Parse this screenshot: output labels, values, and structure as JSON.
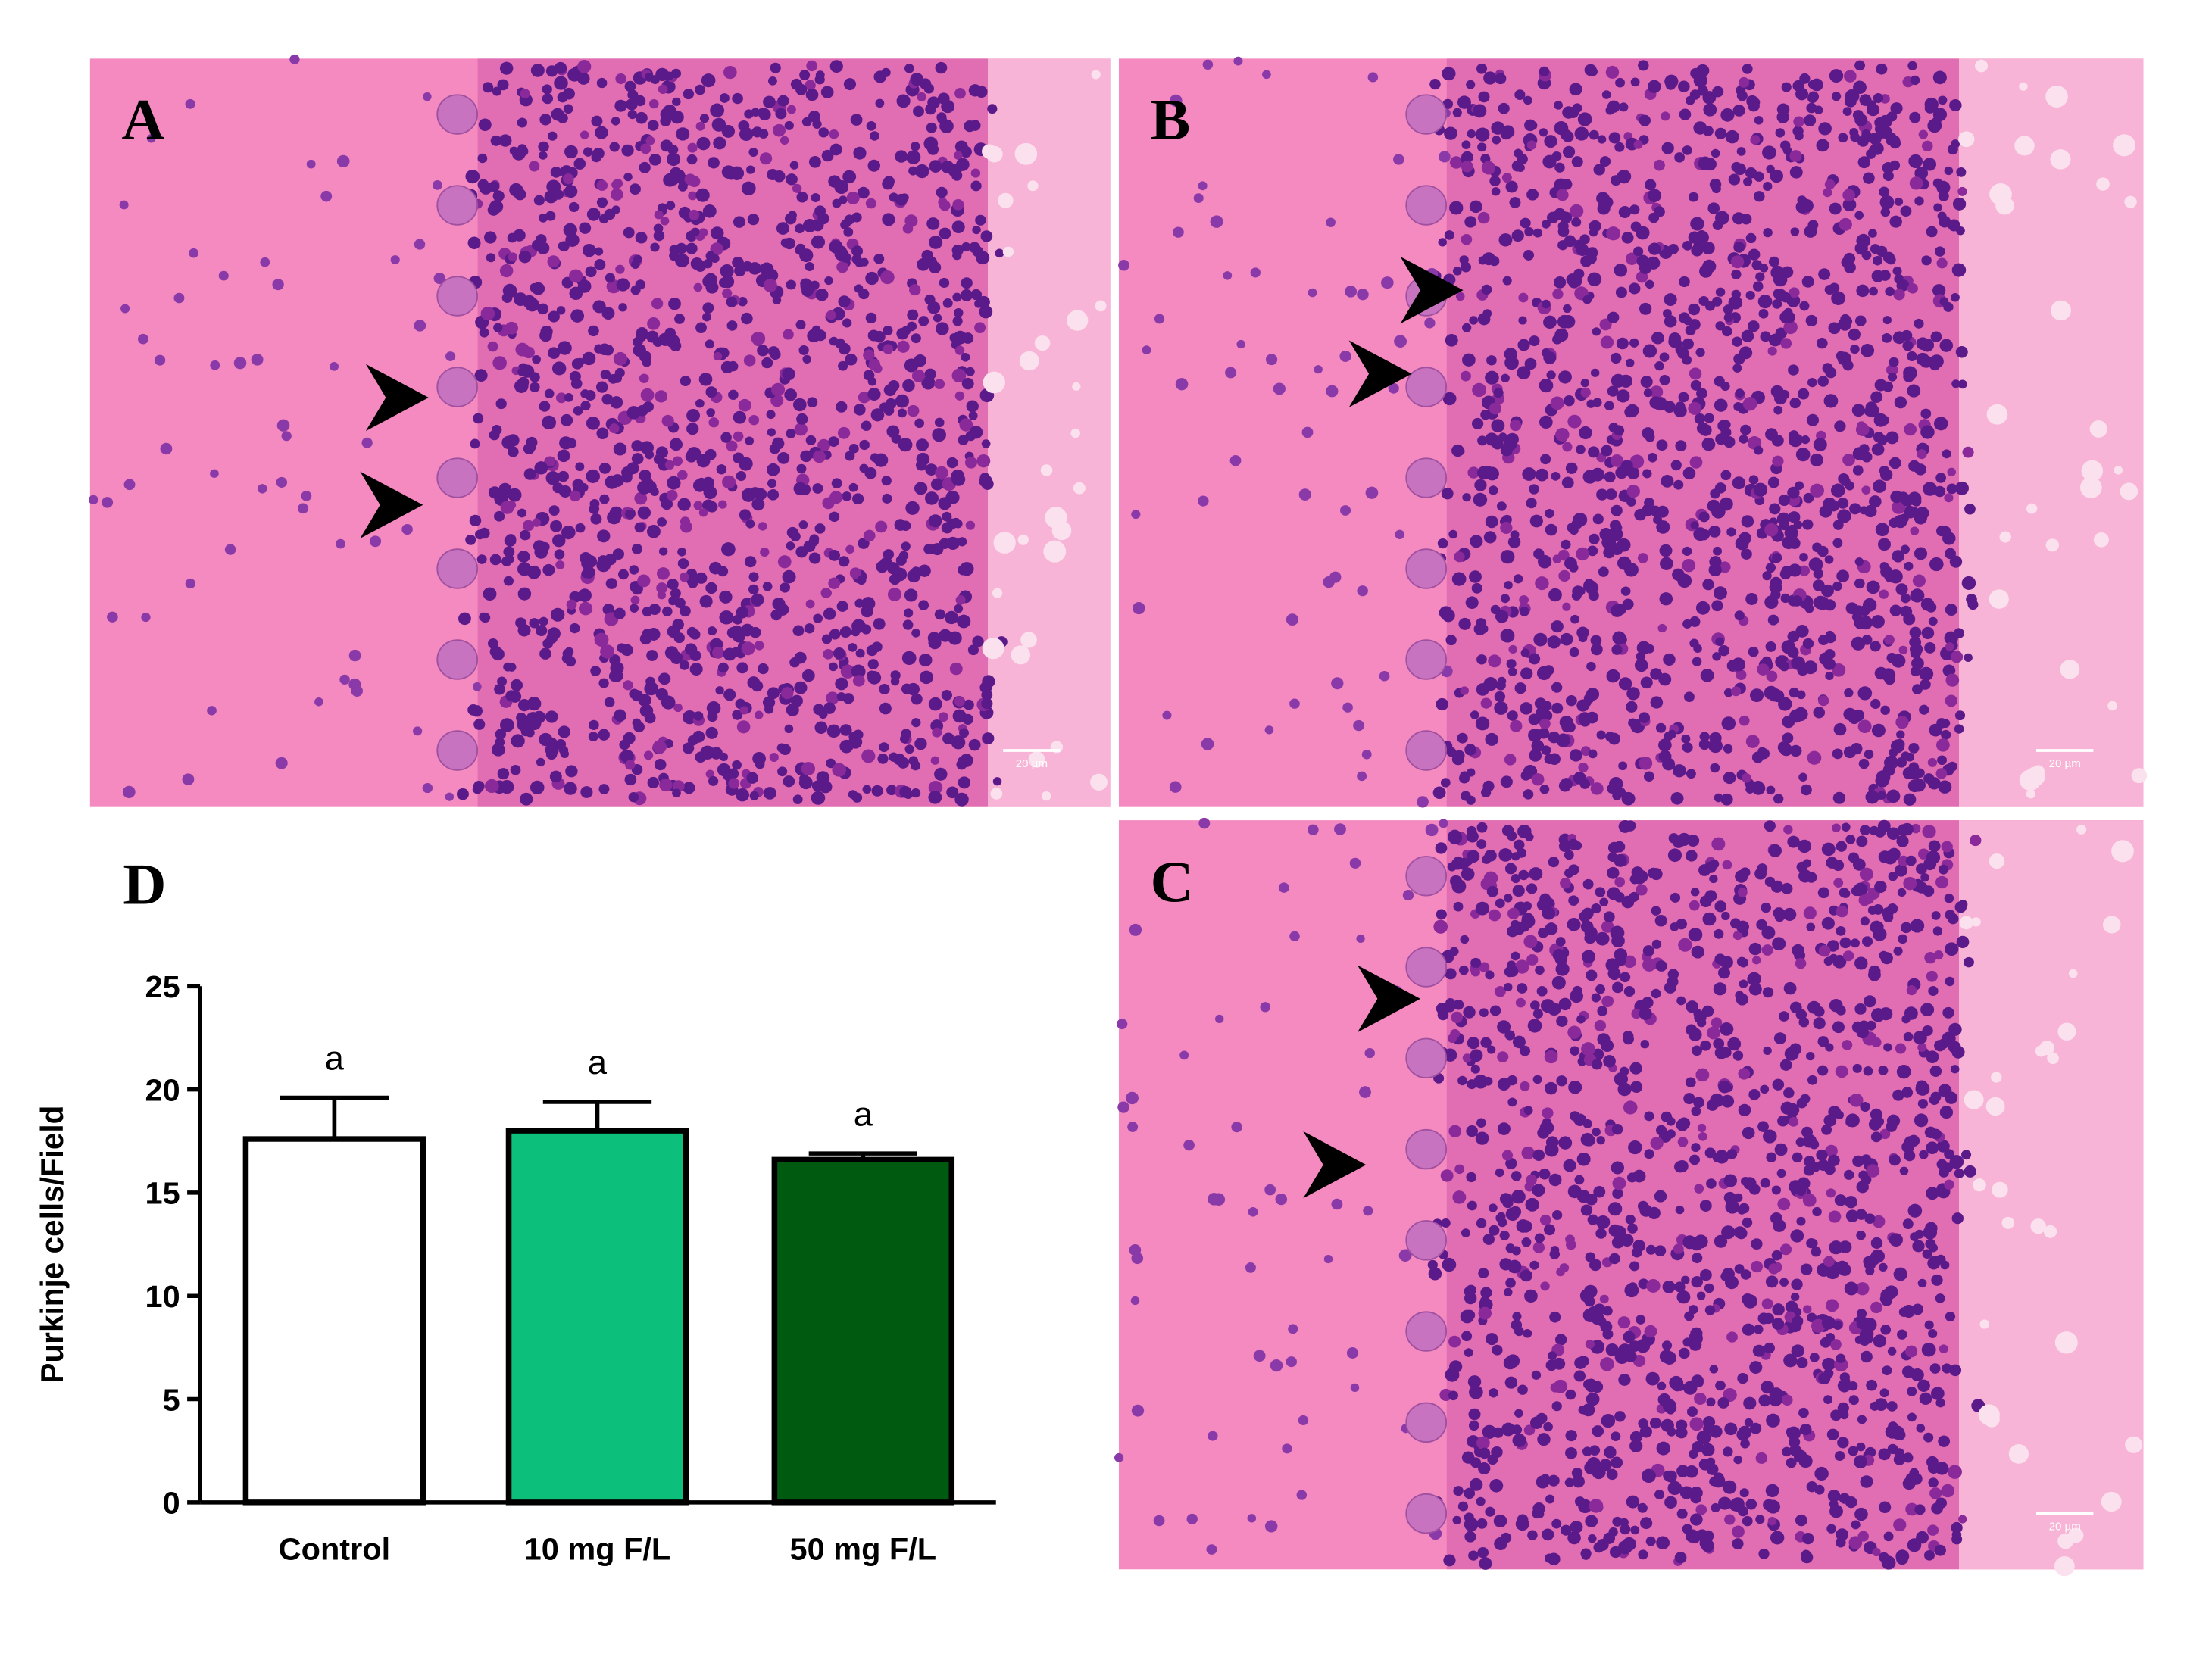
{
  "panels": [
    {
      "label": "A",
      "scale_bar": "20 µm"
    },
    {
      "label": "B",
      "scale_bar": "20 µm"
    },
    {
      "label": "C",
      "scale_bar": "20 µm"
    }
  ],
  "chart_data": {
    "type": "bar",
    "panel_label": "D",
    "y_label": "Purkinje cells/Field",
    "categories": [
      "Control",
      "10 mg F/L",
      "50 mg F/L"
    ],
    "values": [
      17.6,
      18.0,
      16.6
    ],
    "errors": [
      2.0,
      1.4,
      0.3
    ],
    "significance": [
      "a",
      "a",
      "a"
    ],
    "colors": [
      "#ffffff",
      "#0cbf7a",
      "#005a10"
    ],
    "ylim": [
      0,
      25
    ],
    "yticks": [
      0,
      5,
      10,
      15,
      20,
      25
    ]
  }
}
